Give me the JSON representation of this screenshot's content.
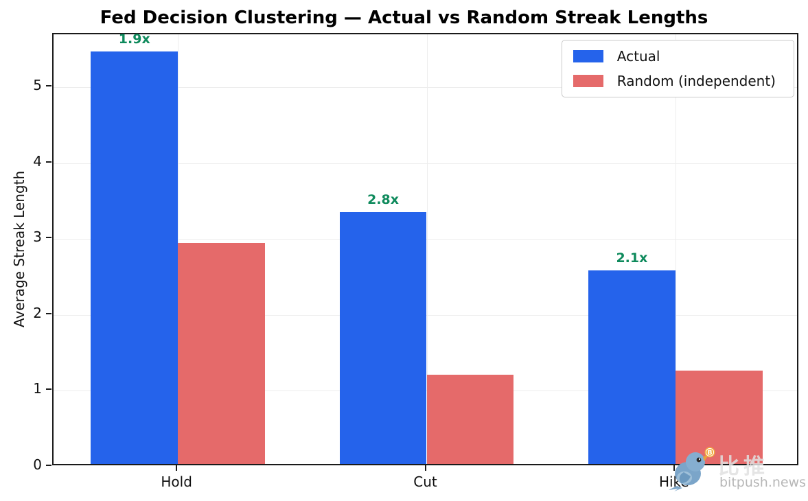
{
  "title": "Fed Decision Clustering — Actual vs Random Streak Lengths",
  "chart_data": {
    "type": "bar",
    "categories": [
      "Hold",
      "Cut",
      "Hike"
    ],
    "series": [
      {
        "name": "Actual",
        "color": "#2563eb",
        "values": [
          5.44,
          3.32,
          2.55
        ]
      },
      {
        "name": "Random (independent)",
        "color": "#e56a6a",
        "values": [
          2.91,
          1.18,
          1.23
        ]
      }
    ],
    "annotations": [
      {
        "category": "Hold",
        "label": "1.9x"
      },
      {
        "category": "Cut",
        "label": "2.8x"
      },
      {
        "category": "Hike",
        "label": "2.1x"
      }
    ],
    "annotation_color": "#0e8a5c",
    "xlabel": "",
    "ylabel": "Average Streak Length",
    "ylim": [
      0,
      5.7
    ],
    "yticks": [
      0,
      1,
      2,
      3,
      4,
      5
    ],
    "grid": true,
    "legend_position": "top-right"
  },
  "legend": {
    "items": [
      {
        "label": "Actual",
        "color": "#2563eb"
      },
      {
        "label": "Random (independent)",
        "color": "#e56a6a"
      }
    ]
  },
  "watermark": {
    "cjk": "比推",
    "domain": "bitpush.news",
    "icon": "bird-with-bitcoin-icon"
  }
}
